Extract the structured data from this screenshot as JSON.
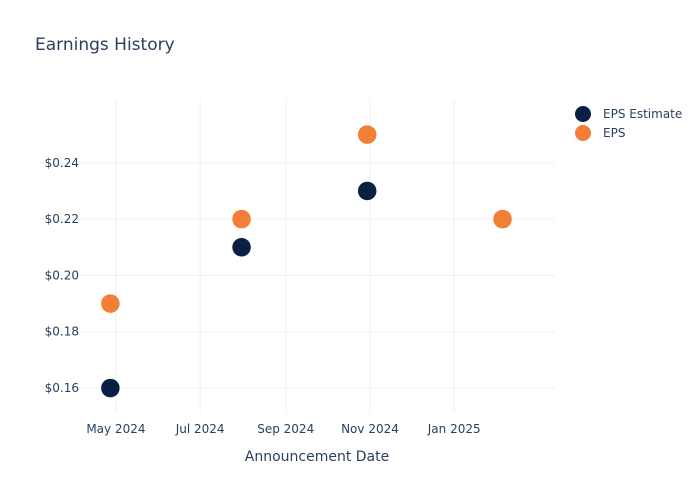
{
  "chart_data": {
    "type": "scatter",
    "title": "Earnings History",
    "xlabel": "Announcement Date",
    "ylabel": "",
    "x_ticks": [
      {
        "date": "2024-05-01",
        "label": "May 2024"
      },
      {
        "date": "2024-07-01",
        "label": "Jul 2024"
      },
      {
        "date": "2024-09-01",
        "label": "Sep 2024"
      },
      {
        "date": "2024-11-01",
        "label": "Nov 2024"
      },
      {
        "date": "2025-01-01",
        "label": "Jan 2025"
      }
    ],
    "y_ticks": [
      {
        "value": 0.16,
        "label": "$0.16"
      },
      {
        "value": 0.18,
        "label": "$0.18"
      },
      {
        "value": 0.2,
        "label": "$0.20"
      },
      {
        "value": 0.22,
        "label": "$0.22"
      },
      {
        "value": 0.24,
        "label": "$0.24"
      }
    ],
    "xlim": [
      "2024-04-05",
      "2025-03-15"
    ],
    "ylim": [
      0.1515,
      0.2623
    ],
    "grid": true,
    "legend_position": "top-right",
    "series": [
      {
        "name": "EPS Estimate",
        "color": "#0a1f44",
        "points": [
          {
            "x": "2024-04-27",
            "y": 0.16
          },
          {
            "x": "2024-07-31",
            "y": 0.21
          },
          {
            "x": "2024-10-30",
            "y": 0.23
          },
          {
            "x": "2025-02-05",
            "y": 0.22
          }
        ]
      },
      {
        "name": "EPS",
        "color": "#f37e36",
        "points": [
          {
            "x": "2024-04-27",
            "y": 0.19
          },
          {
            "x": "2024-07-31",
            "y": 0.22
          },
          {
            "x": "2024-10-30",
            "y": 0.25
          },
          {
            "x": "2025-02-05",
            "y": 0.22
          }
        ]
      }
    ]
  }
}
